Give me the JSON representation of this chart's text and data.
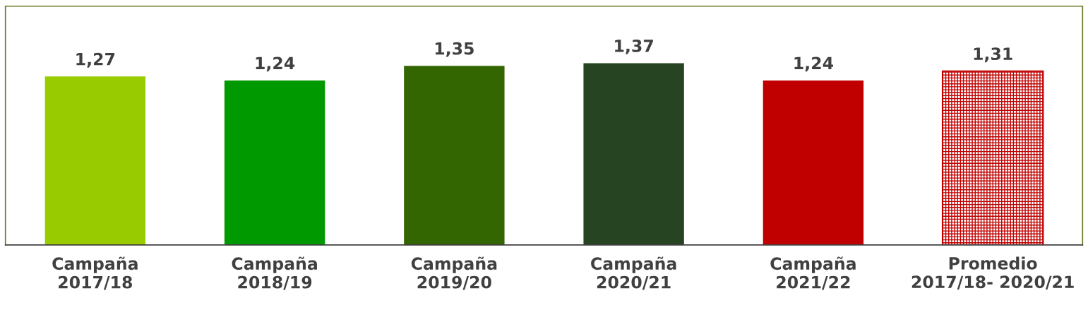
{
  "chart_data": {
    "type": "bar",
    "categories": [
      "Campaña\n2017/18",
      "Campaña\n2018/19",
      "Campaña\n2019/20",
      "Campaña\n2020/21",
      "Campaña\n2021/22",
      "Promedio\n2017/18- 2020/21"
    ],
    "values": [
      1.27,
      1.24,
      1.35,
      1.37,
      1.24,
      1.31
    ],
    "colors": [
      "#99cc00",
      "#009900",
      "#336600",
      "#264421",
      "#c00000",
      "#c00000"
    ],
    "value_labels": [
      "1,27",
      "1,24",
      "1,35",
      "1,37",
      "1,24",
      "1,31"
    ],
    "ylim": [
      0,
      1.8
    ],
    "tick_labels": "x",
    "grid": false,
    "legend": false
  }
}
